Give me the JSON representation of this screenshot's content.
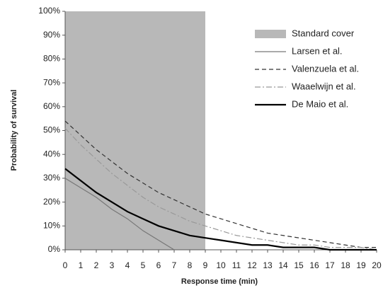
{
  "chart_data": {
    "type": "line",
    "xlabel": "Response time (min)",
    "ylabel": "Probability of survival",
    "span": {
      "name": "Standard cover",
      "color": "#b8b8b8",
      "x": [
        0,
        9
      ]
    },
    "x": [
      0,
      1,
      2,
      3,
      4,
      5,
      6,
      7,
      8,
      9,
      10,
      11,
      12,
      13,
      14,
      15,
      16,
      17,
      18,
      19,
      20
    ],
    "series": [
      {
        "name": "Larsen et al.",
        "color": "#777777",
        "width": 1.2,
        "dash": "none",
        "values": [
          30,
          26,
          22,
          17,
          13,
          8,
          4,
          0,
          null,
          null,
          null,
          null,
          null,
          null,
          null,
          null,
          null,
          null,
          null,
          null,
          null
        ]
      },
      {
        "name": "Valenzuela et al.",
        "color": "#333333",
        "width": 1.2,
        "dash": "6 4",
        "values": [
          54,
          48,
          42,
          37,
          32,
          28,
          24,
          21,
          18,
          15,
          13,
          11,
          9,
          7,
          6,
          5,
          4,
          3,
          2,
          1,
          1
        ]
      },
      {
        "name": "Waaelwijn et al.",
        "color": "#999999",
        "width": 1.2,
        "dash": "8 3 2 3",
        "values": [
          51,
          44,
          38,
          32,
          27,
          22,
          18,
          15,
          12,
          10,
          8,
          6,
          5,
          4,
          3,
          2,
          2,
          1,
          1,
          1,
          0
        ]
      },
      {
        "name": "De Maio et al.",
        "color": "#000000",
        "width": 2.2,
        "dash": "none",
        "values": [
          34,
          29,
          24,
          20,
          16,
          13,
          10,
          8,
          6,
          5,
          4,
          3,
          2,
          2,
          1,
          1,
          1,
          0,
          0,
          0,
          0
        ]
      }
    ],
    "xlim": [
      0,
      20
    ],
    "ylim": [
      0,
      100
    ],
    "xticks": [
      0,
      1,
      2,
      3,
      4,
      5,
      6,
      7,
      8,
      9,
      10,
      11,
      12,
      13,
      14,
      15,
      16,
      17,
      18,
      19,
      20
    ],
    "yticks": [
      {
        "value": 0,
        "label": "0%"
      },
      {
        "value": 10,
        "label": "10%"
      },
      {
        "value": 20,
        "label": "20%"
      },
      {
        "value": 30,
        "label": "30%"
      },
      {
        "value": 40,
        "label": "40%"
      },
      {
        "value": 50,
        "label": "50%"
      },
      {
        "value": 60,
        "label": "60%"
      },
      {
        "value": 70,
        "label": "70%"
      },
      {
        "value": 80,
        "label": "80%"
      },
      {
        "value": 90,
        "label": "90%"
      },
      {
        "value": 100,
        "label": "100%"
      }
    ]
  }
}
